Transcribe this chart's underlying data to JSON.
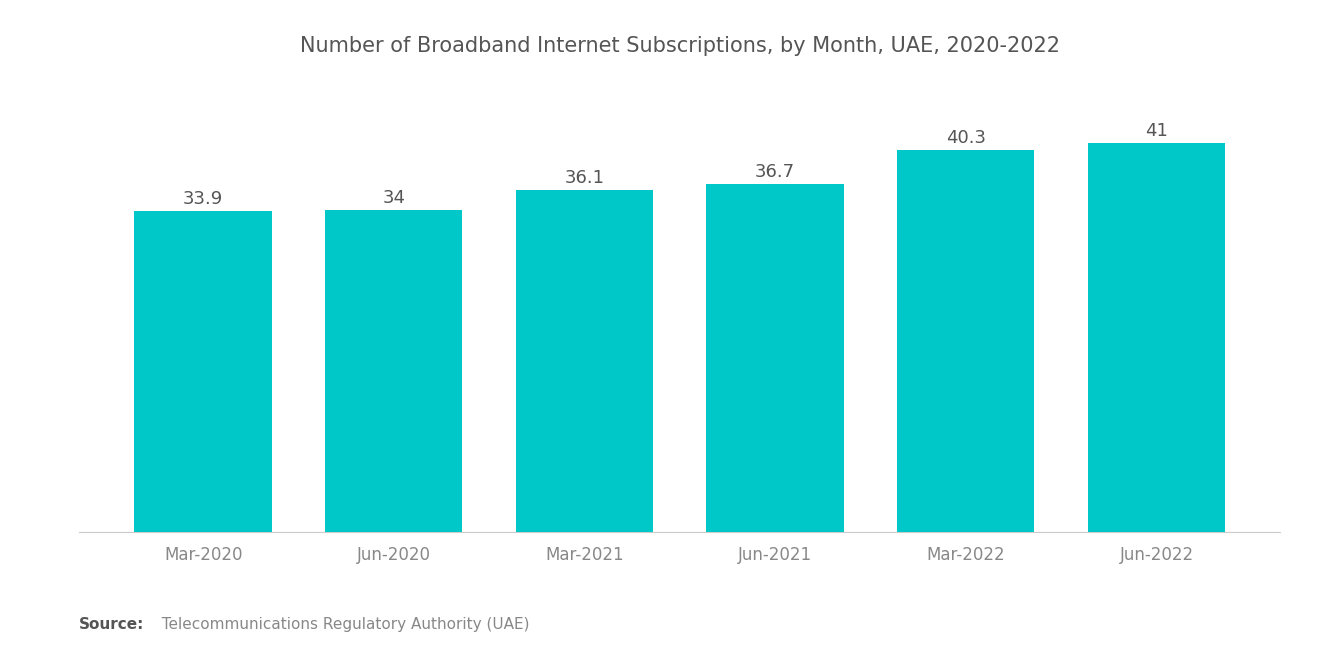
{
  "title": "Number of Broadband Internet Subscriptions, by Month, UAE, 2020-2022",
  "categories": [
    "Mar-2020",
    "Jun-2020",
    "Mar-2021",
    "Jun-2021",
    "Mar-2022",
    "Jun-2022"
  ],
  "values": [
    33.9,
    34,
    36.1,
    36.7,
    40.3,
    41
  ],
  "bar_color": "#00C8C8",
  "background_color": "#ffffff",
  "title_color": "#555555",
  "label_color": "#555555",
  "tick_color": "#888888",
  "ylim": [
    0,
    47
  ],
  "bar_width": 0.72,
  "title_fontsize": 15,
  "label_fontsize": 13,
  "tick_fontsize": 12,
  "source_bold": "Source:",
  "source_text": "  Telecommunications Regulatory Authority (UAE)"
}
